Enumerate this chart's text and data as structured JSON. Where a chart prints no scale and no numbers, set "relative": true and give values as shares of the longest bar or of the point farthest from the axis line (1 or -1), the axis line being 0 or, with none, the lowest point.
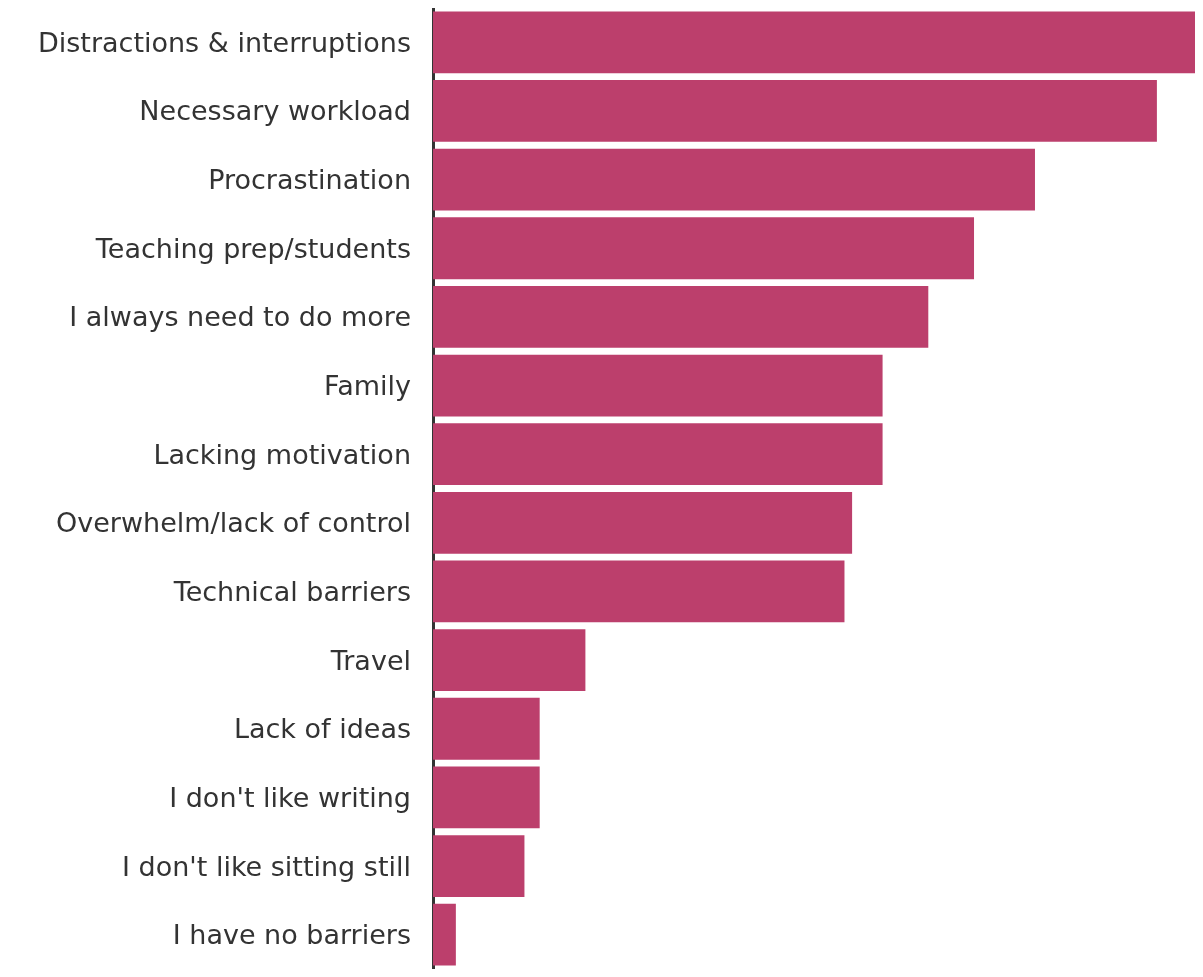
{
  "chart_data": {
    "type": "bar",
    "orientation": "horizontal",
    "relative": true,
    "categories": [
      "Distractions & interruptions",
      "Necessary workload",
      "Procrastination",
      "Teaching prep/students",
      "I always need to do more",
      "Family",
      "Lacking motivation",
      "Overwhelm/lack of control",
      "Technical barriers",
      "Travel",
      "Lack of ideas",
      "I don't like writing",
      "I don't like sitting still",
      "I have no barriers"
    ],
    "values": [
      1,
      0.95,
      0.79,
      0.71,
      0.65,
      0.59,
      0.59,
      0.55,
      0.54,
      0.2,
      0.14,
      0.14,
      0.12,
      0.03
    ],
    "color": "#bc3f6c"
  }
}
